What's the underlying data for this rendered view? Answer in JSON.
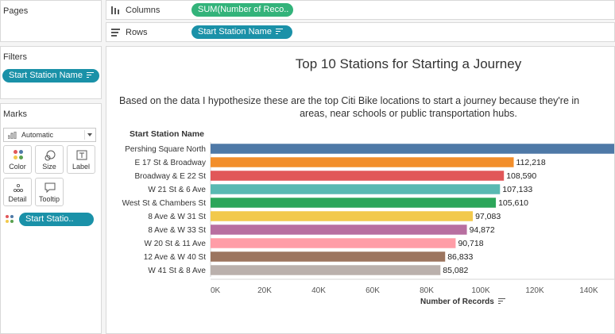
{
  "left_panel": {
    "pages_title": "Pages",
    "filters_title": "Filters",
    "filter_pill": "Start Station Name",
    "marks_title": "Marks",
    "mark_type": "Automatic",
    "mark_buttons": [
      {
        "label": "Color",
        "icon": "color-icon"
      },
      {
        "label": "Size",
        "icon": "size-icon"
      },
      {
        "label": "Label",
        "icon": "label-icon"
      },
      {
        "label": "Detail",
        "icon": "detail-icon"
      },
      {
        "label": "Tooltip",
        "icon": "tooltip-icon"
      }
    ],
    "marks_pill": "Start Statio.."
  },
  "shelves": {
    "columns_label": "Columns",
    "columns_pill": "SUM(Number of Reco..",
    "rows_label": "Rows",
    "rows_pill": "Start Station Name"
  },
  "chart_data": {
    "type": "bar",
    "title": "Top 10 Stations for Starting a Journey",
    "subtitle_line1": "Based on the data I hypothesize these are the top Citi Bike locations to start a journey because they're in",
    "subtitle_line2": "areas, near schools or public transportation hubs.",
    "row_header": "Start Station Name",
    "xlabel": "Number of Records",
    "xlim": [
      0,
      150000
    ],
    "x_ticks": [
      0,
      20000,
      40000,
      60000,
      80000,
      100000,
      120000,
      140000
    ],
    "x_tick_labels": [
      "0K",
      "20K",
      "40K",
      "60K",
      "80K",
      "100K",
      "120K",
      "140K"
    ],
    "categories": [
      "Pershing Square North",
      "E 17 St & Broadway",
      "Broadway & E 22 St",
      "W 21 St & 6 Ave",
      "West St & Chambers St",
      "8 Ave & W 31 St",
      "8 Ave & W 33 St",
      "W 20 St & 11 Ave",
      "12 Ave & W 40 St",
      "W 41 St & 8 Ave"
    ],
    "values": [
      152000,
      112218,
      108590,
      107133,
      105610,
      97083,
      94872,
      90718,
      86833,
      85082
    ],
    "value_labels": [
      "",
      "112,218",
      "108,590",
      "107,133",
      "105,610",
      "97,083",
      "94,872",
      "90,718",
      "86,833",
      "85,082"
    ],
    "colors": [
      "#4e79a7",
      "#f28e2b",
      "#e15759",
      "#59b9b2",
      "#2ca65a",
      "#f2c94c",
      "#b86fa0",
      "#ff9da7",
      "#9c755f",
      "#bab0ac"
    ]
  }
}
